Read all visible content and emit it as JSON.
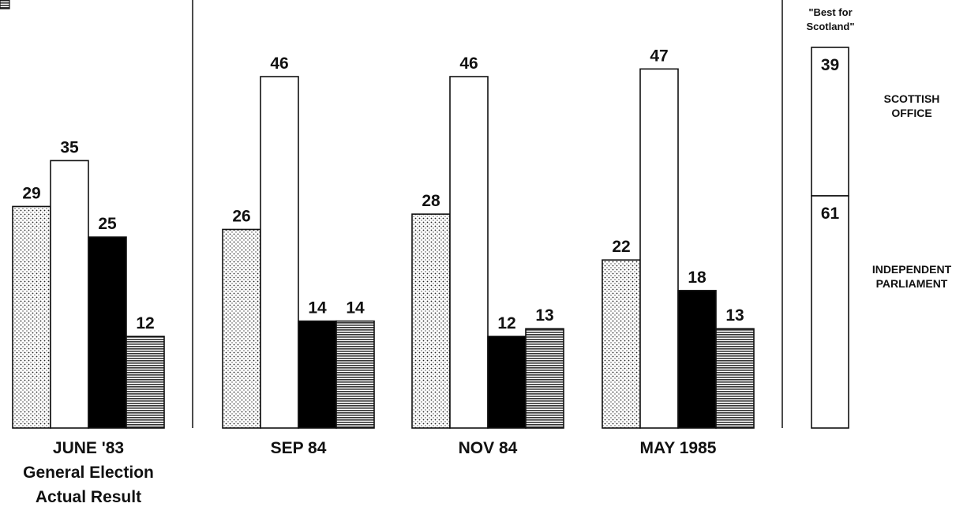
{
  "chart_data": [
    {
      "type": "bar",
      "categories": [
        [
          "JUNE '83",
          "General Election",
          "Actual Result"
        ],
        [
          "SEP 84"
        ],
        [
          "NOV 84"
        ],
        [
          "MAY 1985"
        ]
      ],
      "series": [
        {
          "pattern": "dotted",
          "color": "#ffffff",
          "values": [
            29,
            26,
            28,
            22
          ]
        },
        {
          "pattern": "open",
          "color": "#ffffff",
          "values": [
            35,
            46,
            46,
            47
          ]
        },
        {
          "pattern": "solid",
          "color": "#000000",
          "values": [
            25,
            14,
            12,
            18
          ]
        },
        {
          "pattern": "horizontal-lines",
          "color": "#555555",
          "values": [
            12,
            14,
            13,
            13
          ]
        }
      ],
      "ylim": [
        0,
        50
      ],
      "grid": false,
      "legend": "none"
    },
    {
      "type": "bar",
      "stacked": true,
      "header": [
        "\"Best for",
        "Scotland\""
      ],
      "segments": [
        {
          "value": 39,
          "label": [
            "SCOTTISH",
            "OFFICE"
          ]
        },
        {
          "value": 61,
          "label": [
            "INDEPENDENT",
            "PARLIAMENT"
          ]
        }
      ],
      "ylim": [
        0,
        100
      ]
    }
  ]
}
